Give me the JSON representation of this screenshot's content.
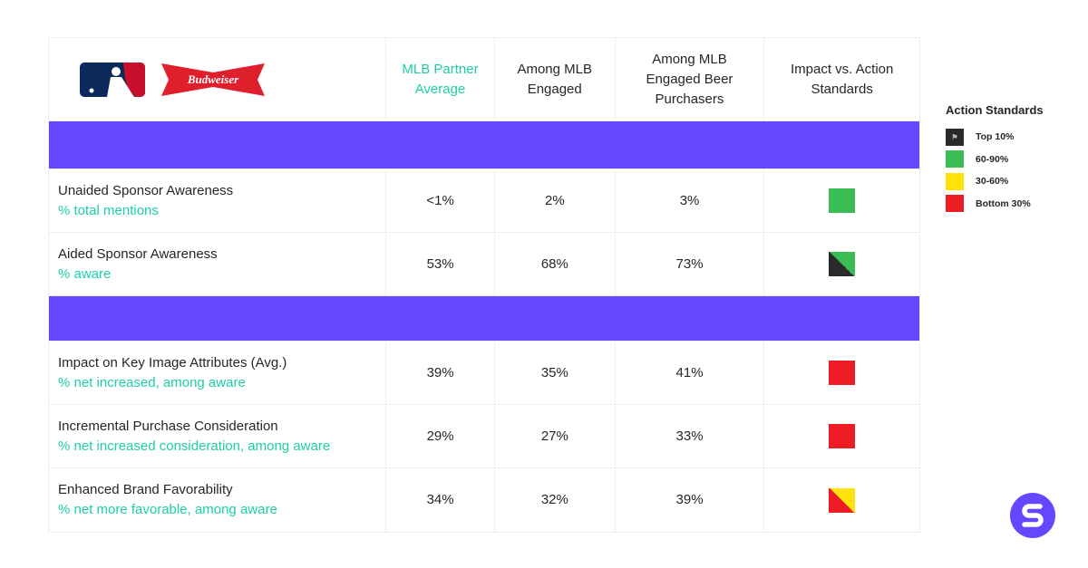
{
  "header": {
    "logos": [
      "MLB",
      "Budweiser"
    ],
    "columns": [
      "MLB Partner Average",
      "Among MLB Engaged",
      "Among MLB Engaged Beer Purchasers",
      "Impact vs. Action Standards"
    ]
  },
  "colors": {
    "band": "#6447ff",
    "teal": "#1ccfa6",
    "top10": "#2a2a2a",
    "p60_90": "#3bbd55",
    "p30_60": "#ffe20a",
    "bottom30": "#ee1c25"
  },
  "rows1": [
    {
      "title": "Unaided Sponsor Awareness",
      "sub": "% total mentions",
      "v": [
        "<1%",
        "2%",
        "3%"
      ],
      "std": "60-90%"
    },
    {
      "title": "Aided Sponsor Awareness",
      "sub": "% aware",
      "v": [
        "53%",
        "68%",
        "73%"
      ],
      "std": "Top 10% / 60-90%"
    }
  ],
  "rows2": [
    {
      "title": "Impact on Key Image Attributes (Avg.)",
      "sub": "% net increased, among aware",
      "v": [
        "39%",
        "35%",
        "41%"
      ],
      "std": "Bottom 30%"
    },
    {
      "title": "Incremental Purchase Consideration",
      "sub": "% net increased consideration, among aware",
      "v": [
        "29%",
        "27%",
        "33%"
      ],
      "std": "Bottom 30%"
    },
    {
      "title": "Enhanced Brand Favorability",
      "sub": "% net more favorable, among aware",
      "v": [
        "34%",
        "32%",
        "39%"
      ],
      "std": "Bottom 30% / 30-60%"
    }
  ],
  "legend": {
    "title": "Action Standards",
    "items": [
      "Top 10%",
      "60-90%",
      "30-60%",
      "Bottom 30%"
    ]
  }
}
